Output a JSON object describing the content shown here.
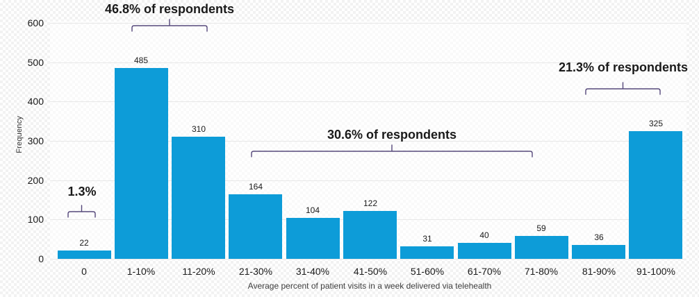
{
  "chart_data": {
    "type": "bar",
    "title": "",
    "categories": [
      "0",
      "1-10%",
      "11-20%",
      "21-30%",
      "31-40%",
      "41-50%",
      "51-60%",
      "61-70%",
      "71-80%",
      "81-90%",
      "91-100%"
    ],
    "values": [
      22,
      485,
      310,
      164,
      104,
      122,
      31,
      40,
      59,
      36,
      325
    ],
    "xlabel": "Average percent of patient visits in a week delivered via telehealth",
    "ylabel": "Frequency",
    "ylim": [
      0,
      600
    ],
    "yticks": [
      0,
      100,
      200,
      300,
      400,
      500,
      600
    ],
    "grid": "horizontal-only",
    "legend": "none",
    "bar_color": "#0d9cd8",
    "bracket_color": "#55487a",
    "annotations": [
      {
        "label": "1.3%",
        "from_category": "0",
        "to_category": "0"
      },
      {
        "label": "46.8% of respondents",
        "from_category": "1-10%",
        "to_category": "11-20%"
      },
      {
        "label": "30.6% of respondents",
        "from_category": "21-30%",
        "to_category": "71-80%"
      },
      {
        "label": "21.3% of respondents",
        "from_category": "81-90%",
        "to_category": "91-100%"
      }
    ]
  }
}
